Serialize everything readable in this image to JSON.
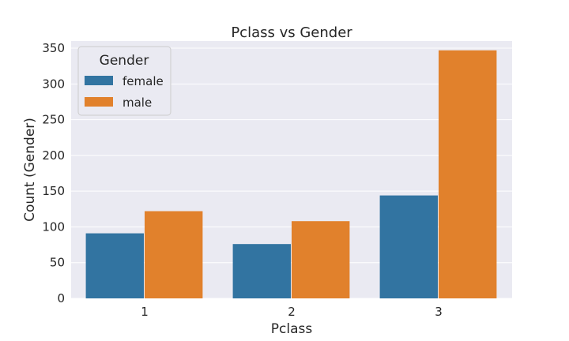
{
  "chart_data": {
    "type": "bar",
    "title": "Pclass vs Gender",
    "xlabel": "Pclass",
    "ylabel": "Count (Gender)",
    "categories": [
      "1",
      "2",
      "3"
    ],
    "series": [
      {
        "name": "female",
        "values": [
          91,
          76,
          144
        ]
      },
      {
        "name": "male",
        "values": [
          122,
          108,
          347
        ]
      }
    ],
    "ylim": [
      0,
      360
    ],
    "yticks": [
      0,
      50,
      100,
      150,
      200,
      250,
      300,
      350
    ],
    "grid": true,
    "legend": {
      "title": "Gender",
      "position": "top-left"
    },
    "colors": {
      "female": "#3274a1",
      "male": "#e1812c",
      "background": "#eaeaf2",
      "grid": "#ffffff"
    }
  }
}
